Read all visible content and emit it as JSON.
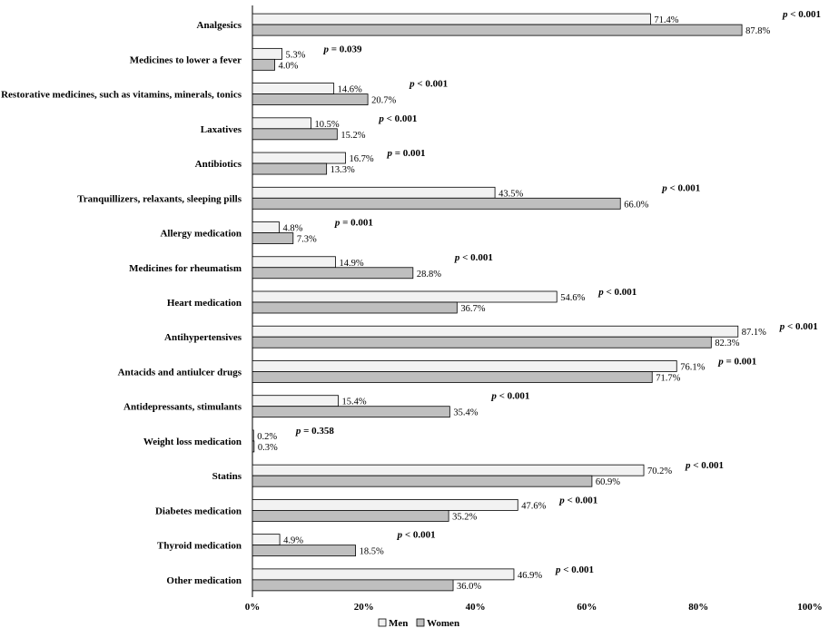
{
  "chart_data": {
    "type": "bar",
    "orientation": "horizontal",
    "title": "",
    "xlabel": "",
    "ylabel": "",
    "xlim": [
      0,
      100
    ],
    "x_ticks": [
      "0%",
      "20%",
      "40%",
      "60%",
      "80%",
      "100%"
    ],
    "categories": [
      "Analgesics",
      "Medicines to lower a fever",
      "Restorative medicines, such as vitamins, minerals, tonics",
      "Laxatives",
      "Antibiotics",
      "Tranquillizers, relaxants, sleeping pills",
      "Allergy medication",
      "Medicines for rheumatism",
      "Heart medication",
      "Antihypertensives",
      "Antacids and antiulcer drugs",
      "Antidepressants, stimulants",
      "Weight loss medication",
      "Statins",
      "Diabetes medication",
      "Thyroid medication",
      "Other medication"
    ],
    "series": [
      {
        "name": "Men",
        "color": "#f2f2f2",
        "values": [
          71.4,
          5.3,
          14.6,
          10.5,
          16.7,
          43.5,
          4.8,
          14.9,
          54.6,
          87.1,
          76.1,
          15.4,
          0.2,
          70.2,
          47.6,
          4.9,
          46.9
        ],
        "labels": [
          "71.4%",
          "5.3%",
          "14.6%",
          "10.5%",
          "16.7%",
          "43.5%",
          "4.8%",
          "14.9%",
          "54.6%",
          "87.1%",
          "76.1%",
          "15.4%",
          "0.2%",
          "70.2%",
          "47.6%",
          "4.9%",
          "46.9%"
        ]
      },
      {
        "name": "Women",
        "color": "#bfbfbf",
        "values": [
          87.8,
          4.0,
          20.7,
          15.2,
          13.3,
          66.0,
          7.3,
          28.8,
          36.7,
          82.3,
          71.7,
          35.4,
          0.3,
          60.9,
          35.2,
          18.5,
          36.0
        ],
        "labels": [
          "87.8%",
          "4.0%",
          "20.7%",
          "15.2%",
          "13.3%",
          "66.0%",
          "7.3%",
          "28.8%",
          "36.7%",
          "82.3%",
          "71.7%",
          "35.4%",
          "0.3%",
          "60.9%",
          "35.2%",
          "18.5%",
          "36.0%"
        ]
      }
    ],
    "annotations": [
      {
        "p": "p",
        "text": " < 0.001"
      },
      {
        "p": "p",
        "text": " = 0.039"
      },
      {
        "p": "p",
        "text": " < 0.001"
      },
      {
        "p": "p",
        "text": " < 0.001"
      },
      {
        "p": "p",
        "text": " = 0.001"
      },
      {
        "p": "p",
        "text": " < 0.001"
      },
      {
        "p": "p",
        "text": " = 0.001"
      },
      {
        "p": "p",
        "text": " < 0.001"
      },
      {
        "p": "p",
        "text": " < 0.001"
      },
      {
        "p": "p",
        "text": " < 0.001"
      },
      {
        "p": "p",
        "text": " = 0.001"
      },
      {
        "p": "p",
        "text": " < 0.001"
      },
      {
        "p": "p",
        "text": " = 0.358"
      },
      {
        "p": "p",
        "text": " < 0.001"
      },
      {
        "p": "p",
        "text": " < 0.001"
      },
      {
        "p": "p",
        "text": " < 0.001"
      },
      {
        "p": "p",
        "text": " < 0.001"
      }
    ],
    "legend": {
      "position": "bottom",
      "entries": [
        "Men",
        "Women"
      ]
    }
  }
}
